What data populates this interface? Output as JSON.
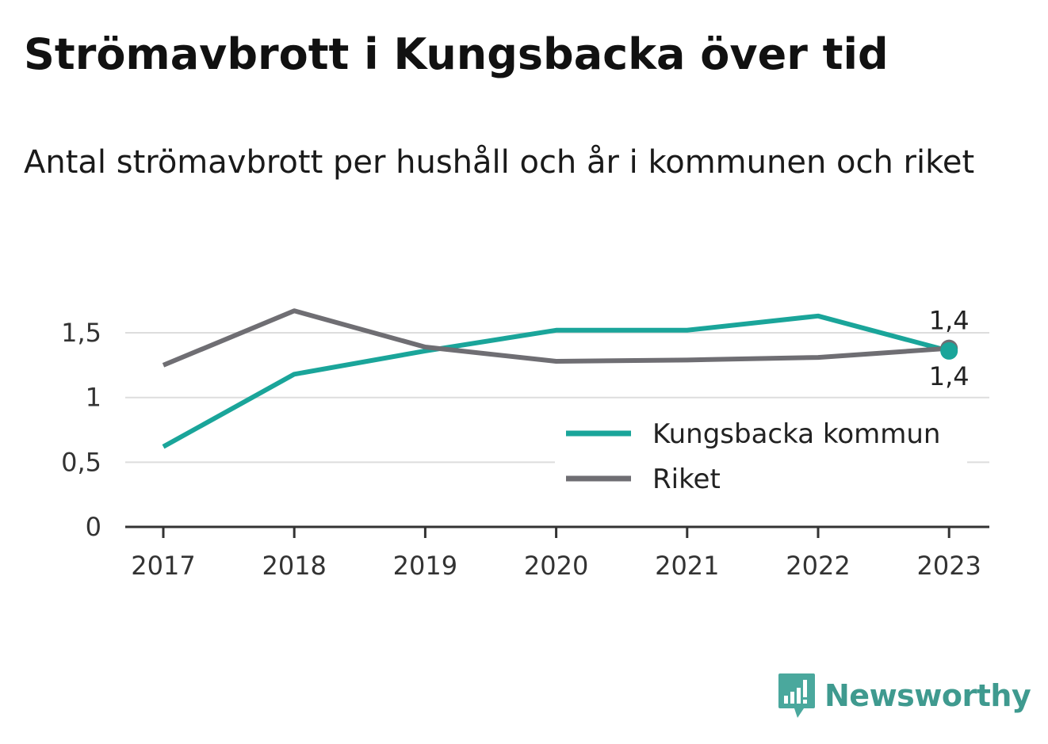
{
  "title": "Strömavbrott i Kungsbacka över tid",
  "subtitle": "Antal strömavbrott per hushåll och år i kommunen och riket",
  "brand": {
    "name": "Newsworthy",
    "icon": "newsworthy-logo-icon"
  },
  "colors": {
    "kungsbacka": "#1aa59a",
    "riket": "#6f6e73",
    "grid": "#dddddd",
    "axis": "#333333"
  },
  "chart_data": {
    "type": "line",
    "categories": [
      "2017",
      "2018",
      "2019",
      "2020",
      "2021",
      "2022",
      "2023"
    ],
    "series": [
      {
        "name": "Kungsbacka kommun",
        "values": [
          0.62,
          1.18,
          1.36,
          1.52,
          1.52,
          1.63,
          1.36
        ],
        "color": "#1aa59a"
      },
      {
        "name": "Riket",
        "values": [
          1.25,
          1.67,
          1.39,
          1.28,
          1.29,
          1.31,
          1.38
        ],
        "color": "#6f6e73"
      }
    ],
    "yticks": [
      {
        "value": 0,
        "label": "0"
      },
      {
        "value": 0.5,
        "label": "0,5"
      },
      {
        "value": 1,
        "label": "1"
      },
      {
        "value": 1.5,
        "label": "1,5"
      }
    ],
    "ylim": [
      0,
      1.7
    ],
    "grid": true,
    "legend_position": "bottom-right",
    "annotations": [
      {
        "series": "Riket",
        "category": "2023",
        "label": "1,4",
        "placement": "above"
      },
      {
        "series": "Kungsbacka kommun",
        "category": "2023",
        "label": "1,4",
        "placement": "below"
      }
    ],
    "xlabel": "",
    "ylabel": ""
  }
}
